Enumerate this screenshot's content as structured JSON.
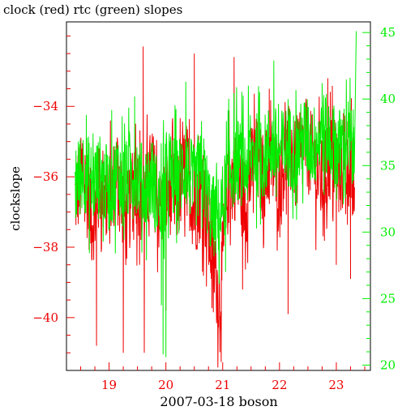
{
  "chart_data": {
    "type": "line",
    "title": "clock (red) rtc (green) slopes",
    "xlabel": "2007-03-18 boson",
    "ylabel": "clockslope",
    "xlim": [
      18.25,
      23.6
    ],
    "ylim_left": [
      -41.5,
      -31.6
    ],
    "ylim_right": [
      19.6,
      45.8
    ],
    "x_ticks": [
      19,
      20,
      21,
      22,
      23
    ],
    "y_left_ticks": [
      -34,
      -36,
      -38,
      -40
    ],
    "y_right_ticks": [
      45,
      40,
      35,
      30,
      25,
      20
    ],
    "colors": {
      "clock": "#ee0000",
      "rtc": "#00ee00",
      "axis": "#000000"
    },
    "series": [
      {
        "name": "clock",
        "axis": "left",
        "x": [
          18.4,
          18.55,
          18.7,
          18.85,
          19.0,
          19.15,
          19.3,
          19.45,
          19.6,
          19.75,
          19.9,
          20.05,
          20.2,
          20.35,
          20.5,
          20.65,
          20.8,
          20.95,
          21.1,
          21.25,
          21.4,
          21.55,
          21.7,
          21.85,
          22.0,
          22.15,
          22.3,
          22.45,
          22.6,
          22.75,
          22.9,
          23.05,
          23.2,
          23.32
        ],
        "y": [
          -36.6,
          -35.9,
          -37.3,
          -36.2,
          -36.8,
          -35.7,
          -37.4,
          -36.0,
          -36.9,
          -35.8,
          -37.1,
          -36.3,
          -36.7,
          -35.6,
          -37.0,
          -36.4,
          -38.1,
          -39.5,
          -36.2,
          -35.9,
          -36.8,
          -35.4,
          -36.0,
          -35.6,
          -36.1,
          -35.2,
          -35.8,
          -35.0,
          -35.6,
          -36.2,
          -35.4,
          -35.9,
          -35.5,
          -36.3
        ],
        "spikes": [
          {
            "x": 19.6,
            "y": -32.3
          },
          {
            "x": 19.62,
            "y": -41.0
          },
          {
            "x": 19.25,
            "y": -41.0
          },
          {
            "x": 20.5,
            "y": -32.5
          },
          {
            "x": 20.0,
            "y": -39.8
          },
          {
            "x": 20.95,
            "y": -40.5
          },
          {
            "x": 21.2,
            "y": -32.6
          },
          {
            "x": 21.35,
            "y": -39.2
          },
          {
            "x": 22.15,
            "y": -39.9
          },
          {
            "x": 22.85,
            "y": -33.2
          },
          {
            "x": 23.0,
            "y": -38.5
          },
          {
            "x": 23.25,
            "y": -38.9
          },
          {
            "x": 18.78,
            "y": -40.8
          },
          {
            "x": 21.82,
            "y": -33.5
          }
        ]
      },
      {
        "name": "rtc",
        "axis": "right",
        "x": [
          18.4,
          18.55,
          18.7,
          18.85,
          19.0,
          19.15,
          19.3,
          19.45,
          19.6,
          19.75,
          19.9,
          20.05,
          20.2,
          20.35,
          20.5,
          20.65,
          20.8,
          20.95,
          21.1,
          21.25,
          21.4,
          21.55,
          21.7,
          21.85,
          22.0,
          22.15,
          22.3,
          22.45,
          22.6,
          22.75,
          22.9,
          23.05,
          23.2,
          23.32
        ],
        "y": [
          33.4,
          34.8,
          33.6,
          34.2,
          33.1,
          34.5,
          33.7,
          34.9,
          33.3,
          34.1,
          31.8,
          34.4,
          33.9,
          35.0,
          33.2,
          34.6,
          31.2,
          31.0,
          34.3,
          35.5,
          34.8,
          36.1,
          35.4,
          36.7,
          35.9,
          36.5,
          36.0,
          37.2,
          36.4,
          37.6,
          36.8,
          36.2,
          37.0,
          35.8
        ],
        "spikes": [
          {
            "x": 19.95,
            "y": 20.8
          },
          {
            "x": 20.0,
            "y": 20.6
          },
          {
            "x": 19.92,
            "y": 24.5
          },
          {
            "x": 21.9,
            "y": 42.9
          },
          {
            "x": 22.15,
            "y": 40.0
          },
          {
            "x": 23.35,
            "y": 45.1
          },
          {
            "x": 19.45,
            "y": 40.2
          },
          {
            "x": 20.35,
            "y": 41.3
          },
          {
            "x": 21.05,
            "y": 27.0
          },
          {
            "x": 22.75,
            "y": 41.2
          },
          {
            "x": 18.6,
            "y": 38.8
          }
        ]
      }
    ]
  }
}
